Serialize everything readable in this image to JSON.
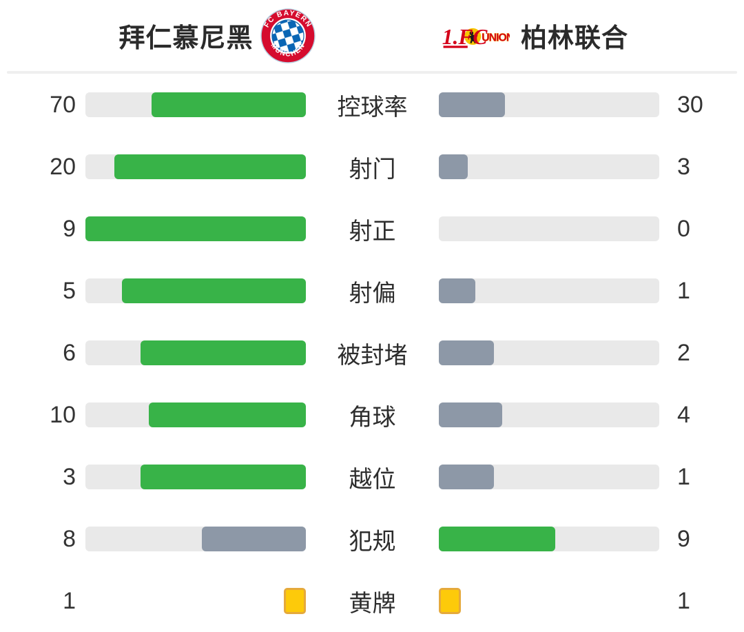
{
  "header": {
    "home": {
      "name": "拜仁慕尼黑",
      "crest_top": "FC BAYERN",
      "crest_bottom": "MÜNCHEN"
    },
    "away": {
      "name": "柏林联合",
      "crest_prefix": "1.FC",
      "crest_word": "UNION"
    }
  },
  "colors": {
    "green": "#38b348",
    "slate": "#8d98a7",
    "track": "#e9e9e9",
    "card_yellow": "#fdca0a",
    "card_border": "#e5a93c",
    "bayern_red": "#d50c2e",
    "bayern_blue": "#0a66b4",
    "union_red": "#d40019",
    "union_yellow": "#f7c600"
  },
  "rows": [
    {
      "kind": "bar",
      "label": "控球率",
      "left": {
        "value": "70",
        "pct": 70,
        "variant": "green"
      },
      "right": {
        "value": "30",
        "pct": 30,
        "variant": "slate"
      }
    },
    {
      "kind": "bar",
      "label": "射门",
      "left": {
        "value": "20",
        "pct": 87,
        "variant": "green"
      },
      "right": {
        "value": "3",
        "pct": 13,
        "variant": "slate"
      }
    },
    {
      "kind": "bar",
      "label": "射正",
      "left": {
        "value": "9",
        "pct": 100,
        "variant": "green"
      },
      "right": {
        "value": "0",
        "pct": 0,
        "variant": "slate"
      }
    },
    {
      "kind": "bar",
      "label": "射偏",
      "left": {
        "value": "5",
        "pct": 83.3,
        "variant": "green"
      },
      "right": {
        "value": "1",
        "pct": 16.7,
        "variant": "slate"
      }
    },
    {
      "kind": "bar",
      "label": "被封堵",
      "left": {
        "value": "6",
        "pct": 75,
        "variant": "green"
      },
      "right": {
        "value": "2",
        "pct": 25,
        "variant": "slate"
      }
    },
    {
      "kind": "bar",
      "label": "角球",
      "left": {
        "value": "10",
        "pct": 71.4,
        "variant": "green"
      },
      "right": {
        "value": "4",
        "pct": 28.6,
        "variant": "slate"
      }
    },
    {
      "kind": "bar",
      "label": "越位",
      "left": {
        "value": "3",
        "pct": 75,
        "variant": "green"
      },
      "right": {
        "value": "1",
        "pct": 25,
        "variant": "slate"
      }
    },
    {
      "kind": "bar",
      "label": "犯规",
      "left": {
        "value": "8",
        "pct": 47.1,
        "variant": "slate"
      },
      "right": {
        "value": "9",
        "pct": 52.9,
        "variant": "green"
      }
    },
    {
      "kind": "card",
      "label": "黄牌",
      "left": {
        "value": "1"
      },
      "right": {
        "value": "1"
      }
    }
  ],
  "chart_data": {
    "type": "bar",
    "categories": [
      "控球率",
      "射门",
      "射正",
      "射偏",
      "被封堵",
      "角球",
      "越位",
      "犯规",
      "黄牌"
    ],
    "series": [
      {
        "name": "拜仁慕尼黑",
        "values": [
          70,
          20,
          9,
          5,
          6,
          10,
          3,
          8,
          1
        ]
      },
      {
        "name": "柏林联合",
        "values": [
          30,
          3,
          0,
          1,
          2,
          4,
          1,
          9,
          1
        ]
      }
    ],
    "title": "",
    "xlabel": "",
    "ylabel": "",
    "layout": "mirrored-horizontal-comparison",
    "notes": "Each bar fill length = value / (home value + away value); green marks the higher side, slate-gray the lower; yellow-card row shows card icons instead of bars."
  }
}
